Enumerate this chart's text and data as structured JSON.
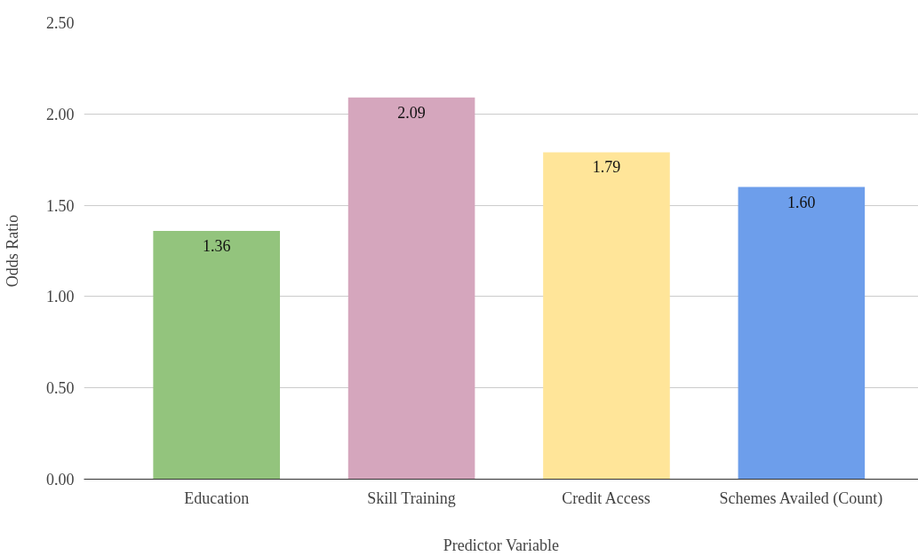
{
  "chart_data": {
    "type": "bar",
    "xlabel": "Predictor Variable",
    "ylabel": "Odds Ratio",
    "categories": [
      "Education",
      "Skill Training",
      "Credit Access",
      "Schemes Availed (Count)"
    ],
    "values": [
      1.36,
      2.09,
      1.79,
      1.6
    ],
    "value_labels": [
      "1.36",
      "2.09",
      "1.79",
      "1.60"
    ],
    "colors": [
      "#93c47d",
      "#d5a6bd",
      "#ffe599",
      "#6d9eeb"
    ],
    "ylim": [
      0,
      2.5
    ],
    "yticks": [
      {
        "value": 0,
        "label": "0.00"
      },
      {
        "value": 0.5,
        "label": "0.50"
      },
      {
        "value": 1,
        "label": "1.00"
      },
      {
        "value": 1.5,
        "label": "1.50"
      },
      {
        "value": 2,
        "label": "2.00"
      },
      {
        "value": 2.5,
        "label": "2.50"
      }
    ],
    "grid": "y"
  }
}
